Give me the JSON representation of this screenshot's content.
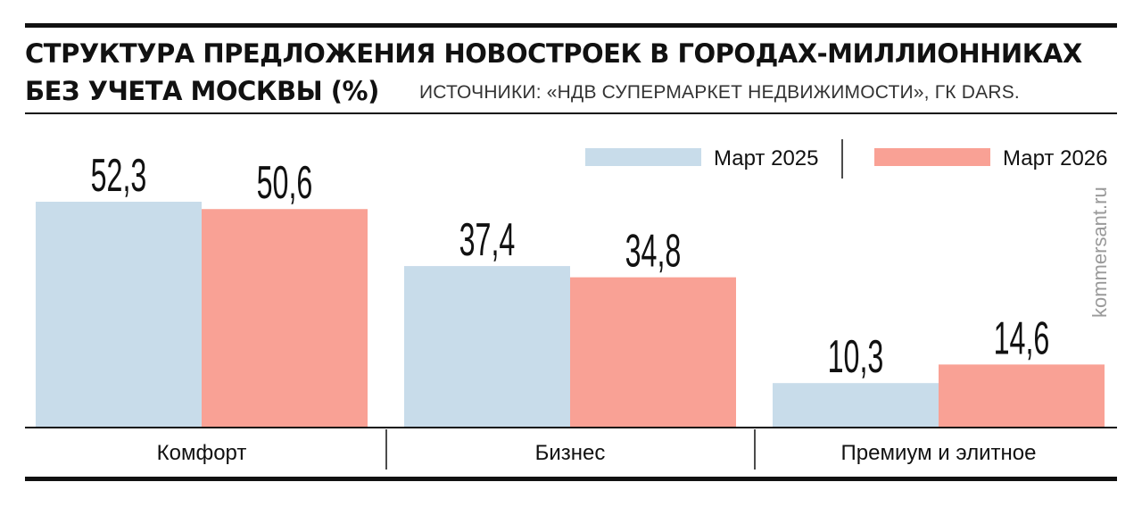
{
  "header": {
    "title_line1": "СТРУКТУРА ПРЕДЛОЖЕНИЯ НОВОСТРОЕК В ГОРОДАХ-МИЛЛИОННИКАХ",
    "title_line2": "БЕЗ УЧЕТА МОСКВЫ (%)",
    "source": "ИСТОЧНИКИ: «НДВ СУПЕРМАРКЕТ НЕДВИЖИМОСТИ», ГК DARS."
  },
  "watermark": "kommersant.ru",
  "colors": {
    "series1": "#c8dcea",
    "series2": "#f9a195",
    "ink": "#111111"
  },
  "chart_data": {
    "type": "bar",
    "title": "СТРУКТУРА ПРЕДЛОЖЕНИЯ НОВОСТРОЕК В ГОРОДАХ-МИЛЛИОННИКАХ БЕЗ УЧЕТА МОСКВЫ (%)",
    "categories": [
      "Комфорт",
      "Бизнес",
      "Премиум и элитное"
    ],
    "series": [
      {
        "name": "Март 2025",
        "values": [
          52.3,
          37.4,
          10.3
        ],
        "labels": [
          "52,3",
          "37,4",
          "10,3"
        ]
      },
      {
        "name": "Март 2026",
        "values": [
          50.6,
          34.8,
          14.6
        ],
        "labels": [
          "50,6",
          "34,8",
          "14,6"
        ]
      }
    ],
    "ylim": [
      0,
      60
    ],
    "grid": false,
    "legend": "top-right",
    "xlabel": "",
    "ylabel": ""
  }
}
